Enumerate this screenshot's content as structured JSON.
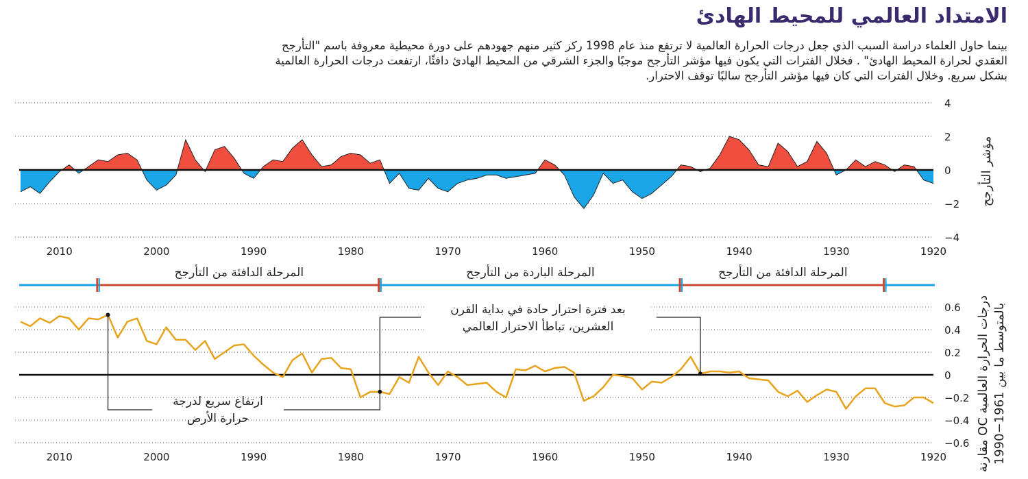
{
  "title": "الامتداد العالمي للمحيط الهادئ",
  "intro": [
    "بينما حاول العلماء دراسة السبب الذي جعل درجات الحرارة العالمية لا ترتفع منذ عام 1998 ركز كثير منهم جهودهم على دورة محيطية معروفة باسم \"التأرجح",
    "العقدي لحرارة المحيط الهادئ\" . فخلال الفترات التي يكون فيها مؤشر التأرجح موجبًا والجزء الشرقي من المحيط الهادئ دافئًا، ارتفعت درجات الحرارة العالمية",
    "بشكل سريع. وخلال الفترات التي كان فيها مؤشر التأرجح سالبًا توقف الاحترار."
  ],
  "phases": [
    {
      "label": "المرحلة الدافئة من التأرجح",
      "from": 1925,
      "to": 1946,
      "type": "warm"
    },
    {
      "label": "المرحلة الباردة من التأرجح",
      "from": 1946,
      "to": 1977,
      "type": "cold"
    },
    {
      "label": "المرحلة الدافئة من التأرجح",
      "from": 1977,
      "to": 2006,
      "type": "warm"
    }
  ],
  "annotations": {
    "hiatus": [
      "بعد فترة احترار حادة في بداية القرن",
      "العشرين، تباطأ الاحترار العالمي"
    ],
    "rapid": [
      "ارتفاع سريع لدرجة",
      "حرارة الأرض"
    ]
  },
  "colors": {
    "warm": "#f04e3e",
    "cold": "#1aa6e6",
    "line": "#e8a31c",
    "phase_line": "#1aa6e6",
    "phase_warm": "#c84a30"
  },
  "chart_data": [
    {
      "type": "area",
      "title": "مؤشر التأرجح",
      "ylabel": "مؤشر التأرجح",
      "ylim": [
        -4,
        4
      ],
      "yticks": [
        4,
        2,
        0,
        -2,
        -4
      ],
      "xlim": [
        1920,
        2014
      ],
      "xticks": [
        2010,
        2000,
        1990,
        1980,
        1970,
        1960,
        1950,
        1940,
        1930,
        1920
      ],
      "x": [
        1920,
        1921,
        1922,
        1923,
        1924,
        1925,
        1926,
        1927,
        1928,
        1929,
        1930,
        1931,
        1932,
        1933,
        1934,
        1935,
        1936,
        1937,
        1938,
        1939,
        1940,
        1941,
        1942,
        1943,
        1944,
        1945,
        1946,
        1947,
        1948,
        1949,
        1950,
        1951,
        1952,
        1953,
        1954,
        1955,
        1956,
        1957,
        1958,
        1959,
        1960,
        1961,
        1962,
        1963,
        1964,
        1965,
        1966,
        1967,
        1968,
        1969,
        1970,
        1971,
        1972,
        1973,
        1974,
        1975,
        1976,
        1977,
        1978,
        1979,
        1980,
        1981,
        1982,
        1983,
        1984,
        1985,
        1986,
        1987,
        1988,
        1989,
        1990,
        1991,
        1992,
        1993,
        1994,
        1995,
        1996,
        1997,
        1998,
        1999,
        2000,
        2001,
        2002,
        2003,
        2004,
        2005,
        2006,
        2007,
        2008,
        2009,
        2010,
        2011,
        2012,
        2013,
        2014
      ],
      "values": [
        -0.8,
        -0.6,
        0.2,
        0.3,
        -0.1,
        0.3,
        0.5,
        0.2,
        0.6,
        0.0,
        -0.3,
        1.0,
        1.7,
        0.5,
        0.2,
        1.1,
        1.6,
        0.2,
        0.3,
        1.2,
        1.8,
        2.0,
        0.9,
        0.1,
        -0.1,
        0.2,
        0.3,
        -0.4,
        -0.9,
        -1.4,
        -1.7,
        -1.3,
        -0.6,
        -0.8,
        -0.2,
        -1.5,
        -2.3,
        -1.6,
        -0.3,
        0.3,
        0.6,
        -0.2,
        -0.3,
        -0.4,
        -0.5,
        -0.3,
        -0.3,
        -0.5,
        -0.6,
        -0.8,
        -1.3,
        -1.1,
        -0.5,
        -1.2,
        -1.1,
        -0.2,
        -0.8,
        0.6,
        0.4,
        0.9,
        1.0,
        0.8,
        0.3,
        0.2,
        0.9,
        1.8,
        1.3,
        0.5,
        0.6,
        0.2,
        -0.5,
        -0.2,
        0.7,
        1.4,
        1.2,
        -0.1,
        0.6,
        1.8,
        -0.3,
        -0.9,
        -1.2,
        -0.6,
        0.6,
        1.0,
        0.9,
        0.5,
        0.6,
        0.2,
        -0.2,
        0.3,
        -0.1,
        -0.7,
        -1.4,
        -1.0,
        -1.3
      ]
    },
    {
      "type": "line",
      "title": "درجات الحرارة العالمية OC مقارنة بالمتوسط ما بين 1961-1990",
      "ylabel": [
        "درجات الحرارة العالمية OC مقارنة",
        "بالمتوسط ما بين 1961-1990"
      ],
      "ylim": [
        -0.6,
        0.6
      ],
      "yticks": [
        0.6,
        0.4,
        0.2,
        0,
        -0.2,
        -0.4,
        -0.6
      ],
      "xlim": [
        1920,
        2014
      ],
      "xticks": [
        2010,
        2000,
        1990,
        1980,
        1970,
        1960,
        1950,
        1940,
        1930,
        1920
      ],
      "x": [
        1920,
        1921,
        1922,
        1923,
        1924,
        1925,
        1926,
        1927,
        1928,
        1929,
        1930,
        1931,
        1932,
        1933,
        1934,
        1935,
        1936,
        1937,
        1938,
        1939,
        1940,
        1941,
        1942,
        1943,
        1944,
        1945,
        1946,
        1947,
        1948,
        1949,
        1950,
        1951,
        1952,
        1953,
        1954,
        1955,
        1956,
        1957,
        1958,
        1959,
        1960,
        1961,
        1962,
        1963,
        1964,
        1965,
        1966,
        1967,
        1968,
        1969,
        1970,
        1971,
        1972,
        1973,
        1974,
        1975,
        1976,
        1977,
        1978,
        1979,
        1980,
        1981,
        1982,
        1983,
        1984,
        1985,
        1986,
        1987,
        1988,
        1989,
        1990,
        1991,
        1992,
        1993,
        1994,
        1995,
        1996,
        1997,
        1998,
        1999,
        2000,
        2001,
        2002,
        2003,
        2004,
        2005,
        2006,
        2007,
        2008,
        2009,
        2010,
        2011,
        2012,
        2013,
        2014
      ],
      "values": [
        -0.25,
        -0.2,
        -0.2,
        -0.27,
        -0.28,
        -0.25,
        -0.12,
        -0.12,
        -0.19,
        -0.3,
        -0.15,
        -0.13,
        -0.18,
        -0.24,
        -0.14,
        -0.19,
        -0.15,
        -0.05,
        -0.04,
        -0.03,
        0.03,
        0.02,
        0.03,
        0.03,
        0.01,
        0.16,
        0.05,
        -0.02,
        -0.07,
        -0.06,
        -0.13,
        -0.03,
        -0.01,
        0.0,
        -0.11,
        -0.19,
        -0.23,
        0.02,
        0.07,
        0.06,
        0.03,
        0.08,
        0.04,
        0.05,
        -0.2,
        -0.15,
        -0.07,
        -0.08,
        -0.09,
        -0.02,
        0.03,
        -0.09,
        0.02,
        0.16,
        -0.07,
        -0.02,
        -0.17,
        -0.15,
        -0.15,
        -0.2,
        0.05,
        0.06,
        0.15,
        0.14,
        0.02,
        0.19,
        0.13,
        -0.02,
        0.02,
        0.09,
        0.17,
        0.27,
        0.26,
        0.2,
        0.14,
        0.3,
        0.22,
        0.31,
        0.31,
        0.42,
        0.27,
        0.3,
        0.5,
        0.47,
        0.33,
        0.53,
        0.49,
        0.5,
        0.4,
        0.5,
        0.52,
        0.46,
        0.5,
        0.43,
        0.47
      ]
    }
  ]
}
